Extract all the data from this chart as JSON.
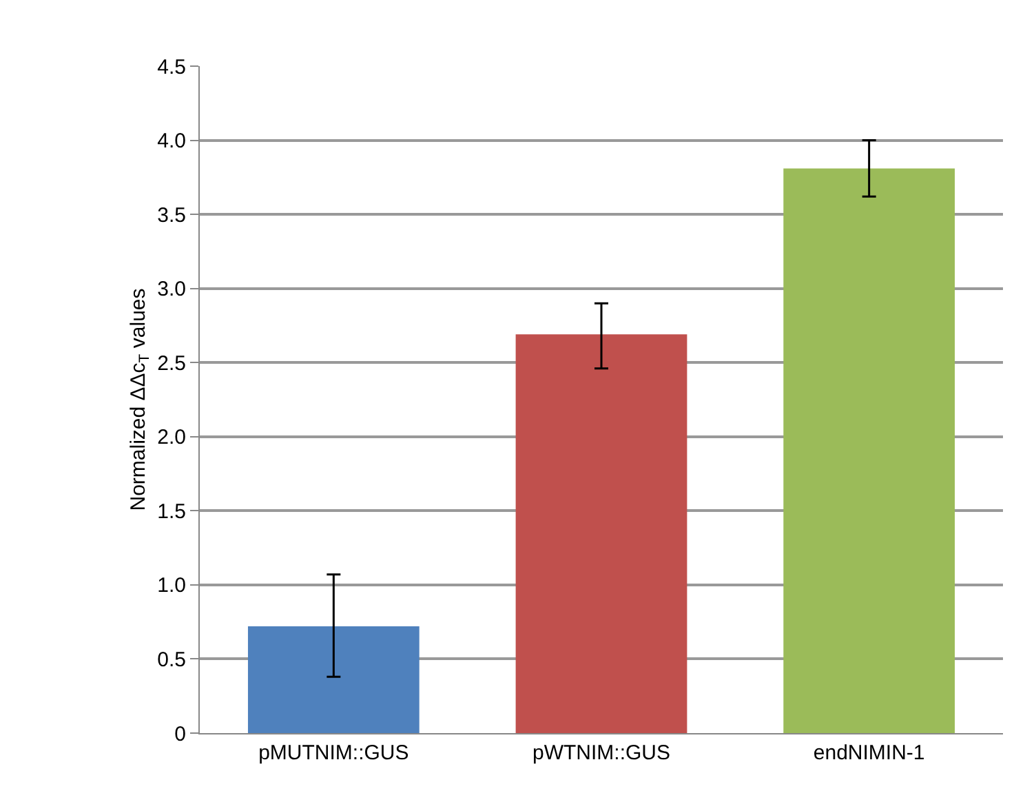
{
  "chart_data": {
    "type": "bar",
    "ylabel": "Normalized ΔΔc$_{T}$ values",
    "categories": [
      "pMUTNIM::GUS",
      "pWTNIM::GUS",
      "endNIMIN-1"
    ],
    "values": [
      0.72,
      2.69,
      3.81
    ],
    "colors": [
      "#4f81bd",
      "#c0504d",
      "#9bbb59"
    ],
    "errors": [
      [
        0.38,
        1.07
      ],
      [
        2.46,
        2.9
      ],
      [
        3.62,
        4.0
      ]
    ],
    "ylim": [
      0,
      4.5
    ],
    "yticks": [
      0,
      {
        "value": 0.5,
        "label": "0.5"
      },
      {
        "value": 1,
        "label": "1.0"
      },
      {
        "value": 1.5,
        "label": "1.5"
      },
      {
        "value": 2,
        "label": "2.0"
      },
      {
        "value": 2.5,
        "label": "2.5"
      },
      {
        "value": 3,
        "label": "3.0"
      },
      {
        "value": 3.5,
        "label": "3.5"
      },
      {
        "value": 4,
        "label": "4.0"
      },
      {
        "value": 4.5,
        "label": "4.5"
      }
    ],
    "grid": "y"
  }
}
